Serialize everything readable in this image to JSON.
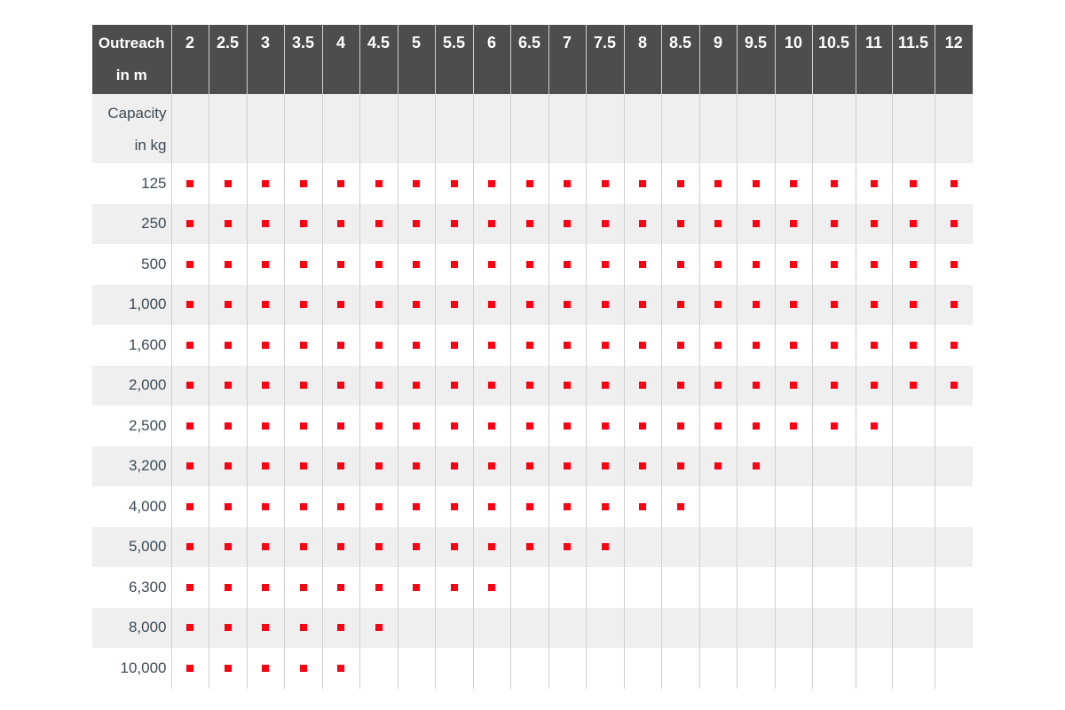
{
  "header": {
    "label_line1": "Outreach",
    "label_line2": "in m"
  },
  "capacity_label": {
    "line1": "Capacity",
    "line2": "in kg"
  },
  "outreach_m": [
    "2",
    "2.5",
    "3",
    "3.5",
    "4",
    "4.5",
    "5",
    "5.5",
    "6",
    "6.5",
    "7",
    "7.5",
    "8",
    "8.5",
    "9",
    "9.5",
    "10",
    "10.5",
    "11",
    "11.5",
    "12"
  ],
  "rows": [
    {
      "capacity": "125",
      "max_outreach": "12"
    },
    {
      "capacity": "250",
      "max_outreach": "12"
    },
    {
      "capacity": "500",
      "max_outreach": "12"
    },
    {
      "capacity": "1,000",
      "max_outreach": "12"
    },
    {
      "capacity": "1,600",
      "max_outreach": "12"
    },
    {
      "capacity": "2,000",
      "max_outreach": "12"
    },
    {
      "capacity": "2,500",
      "max_outreach": "11"
    },
    {
      "capacity": "3,200",
      "max_outreach": "9.5"
    },
    {
      "capacity": "4,000",
      "max_outreach": "8.5"
    },
    {
      "capacity": "5,000",
      "max_outreach": "7.5"
    },
    {
      "capacity": "6,300",
      "max_outreach": "6"
    },
    {
      "capacity": "8,000",
      "max_outreach": "4.5"
    },
    {
      "capacity": "10,000",
      "max_outreach": "4"
    }
  ],
  "colors": {
    "header_bg": "#4d4d4d",
    "mark": "#ff0013",
    "stripe": "#efefef",
    "label_text": "#3b4a55"
  }
}
